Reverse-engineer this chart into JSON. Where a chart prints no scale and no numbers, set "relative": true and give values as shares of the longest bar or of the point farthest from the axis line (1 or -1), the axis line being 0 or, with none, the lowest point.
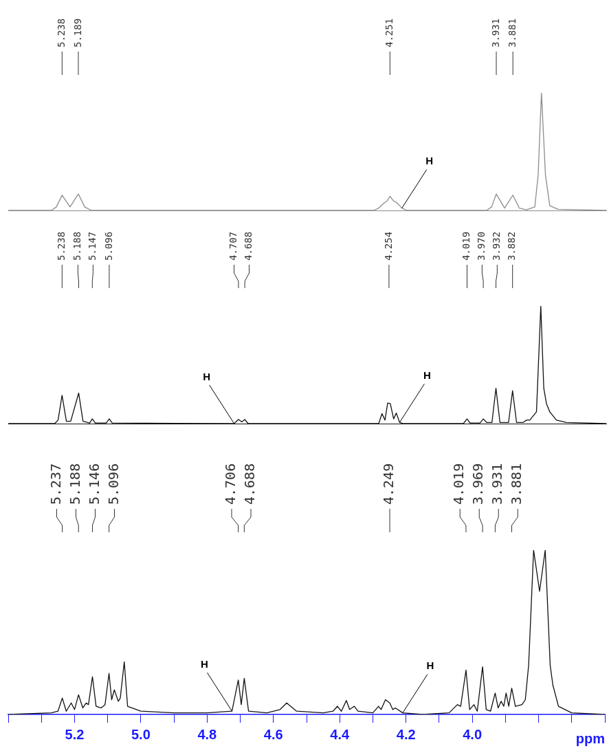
{
  "chart_data": [
    {
      "type": "line",
      "relative": true,
      "xlim": [
        5.4,
        3.6
      ],
      "tick_labels": false,
      "x": [
        5.4,
        5.27,
        5.255,
        5.238,
        5.214,
        5.189,
        5.17,
        5.15,
        4.3,
        4.285,
        4.27,
        4.26,
        4.251,
        4.24,
        4.232,
        4.215,
        4.2,
        3.96,
        3.945,
        3.931,
        3.906,
        3.881,
        3.862,
        3.84,
        3.815,
        3.805,
        3.795,
        3.783,
        3.77,
        3.745,
        3.6
      ],
      "series": [
        {
          "color": "#8c8c8c",
          "values": [
            0,
            0,
            0.03,
            0.13,
            0.03,
            0.14,
            0.03,
            0,
            0,
            0.02,
            0.06,
            0.08,
            0.12,
            0.08,
            0.07,
            0.02,
            0,
            0,
            0.03,
            0.14,
            0.02,
            0.13,
            0.02,
            0.005,
            0.03,
            0.3,
            1.0,
            0.3,
            0.04,
            0.01,
            0
          ]
        }
      ],
      "annotations": [
        {
          "text": "5.238",
          "x": 5.238
        },
        {
          "text": "5.189",
          "x": 5.189
        },
        {
          "text": "4.251",
          "x": 4.251
        },
        {
          "text": "3.931",
          "x": 3.931
        },
        {
          "text": "3.881",
          "x": 3.881
        },
        {
          "text": "H",
          "x": 4.215,
          "y": 0.02
        }
      ]
    },
    {
      "type": "line",
      "relative": true,
      "xlim": [
        5.4,
        3.6
      ],
      "tick_labels": false,
      "x": [
        5.4,
        5.26,
        5.25,
        5.238,
        5.225,
        5.212,
        5.188,
        5.175,
        5.155,
        5.147,
        5.138,
        5.105,
        5.096,
        5.087,
        4.72,
        4.707,
        4.697,
        4.688,
        4.678,
        4.285,
        4.275,
        4.266,
        4.258,
        4.25,
        4.24,
        4.232,
        4.222,
        4.21,
        4.03,
        4.019,
        4.01,
        3.98,
        3.97,
        3.96,
        3.944,
        3.932,
        3.92,
        3.894,
        3.882,
        3.87,
        3.85,
        3.84,
        3.83,
        3.81,
        3.797,
        3.788,
        3.78,
        3.77,
        3.75,
        3.72,
        3.6
      ],
      "series": [
        {
          "color": "#111111",
          "values": [
            0,
            0,
            0.03,
            0.24,
            0.02,
            0.02,
            0.26,
            0.02,
            0.005,
            0.04,
            0.005,
            0.005,
            0.04,
            0.005,
            0,
            0.035,
            0.015,
            0.035,
            0,
            0,
            0.085,
            0.03,
            0.175,
            0.17,
            0.04,
            0.09,
            0.01,
            0,
            0,
            0.04,
            0.005,
            0.005,
            0.04,
            0.01,
            0.01,
            0.3,
            0.01,
            0.01,
            0.28,
            0.01,
            0.01,
            0.03,
            0.03,
            0.1,
            1.0,
            0.3,
            0.17,
            0.1,
            0.03,
            0.01,
            0
          ]
        }
      ],
      "annotations": [
        {
          "text": "5.238",
          "x": 5.238
        },
        {
          "text": "5.188",
          "x": 5.188
        },
        {
          "text": "5.147",
          "x": 5.147
        },
        {
          "text": "5.096",
          "x": 5.096
        },
        {
          "text": "4.707",
          "x": 4.707
        },
        {
          "text": "4.688",
          "x": 4.688
        },
        {
          "text": "4.254",
          "x": 4.254
        },
        {
          "text": "4.019",
          "x": 4.019
        },
        {
          "text": "3.970",
          "x": 3.97
        },
        {
          "text": "3.932",
          "x": 3.932
        },
        {
          "text": "3.882",
          "x": 3.882
        },
        {
          "text": "H",
          "x": 4.72,
          "y": 0
        },
        {
          "text": "H",
          "x": 4.222,
          "y": 0.01
        }
      ]
    },
    {
      "type": "line",
      "relative": true,
      "xlim": [
        5.4,
        3.6
      ],
      "tick_labels": "x",
      "xlabel": "ppm",
      "xticks": [
        {
          "value": 5.4,
          "label": null
        },
        {
          "value": 5.3,
          "label": null
        },
        5.2,
        {
          "value": 5.1,
          "label": null
        },
        {
          "value": 5.0,
          "label": "5.0"
        },
        {
          "value": 4.9,
          "label": null
        },
        4.8,
        {
          "value": 4.7,
          "label": null
        },
        4.6,
        {
          "value": 4.5,
          "label": null
        },
        4.4,
        {
          "value": 4.3,
          "label": null
        },
        4.2,
        {
          "value": 4.1,
          "label": null
        },
        {
          "value": 4.0,
          "label": "4.0"
        },
        {
          "value": 3.9,
          "label": null
        },
        {
          "value": 3.8,
          "label": null
        },
        {
          "value": 3.7,
          "label": null
        },
        {
          "value": 3.6,
          "label": null
        }
      ],
      "x": [
        5.4,
        5.27,
        5.25,
        5.237,
        5.225,
        5.21,
        5.2,
        5.188,
        5.175,
        5.165,
        5.158,
        5.146,
        5.135,
        5.12,
        5.108,
        5.096,
        5.088,
        5.08,
        5.068,
        5.062,
        5.05,
        5.04,
        5.0,
        4.9,
        4.8,
        4.725,
        4.706,
        4.697,
        4.688,
        4.675,
        4.62,
        4.58,
        4.56,
        4.53,
        4.45,
        4.42,
        4.407,
        4.395,
        4.38,
        4.37,
        4.356,
        4.345,
        4.3,
        4.283,
        4.275,
        4.262,
        4.249,
        4.24,
        4.232,
        4.21,
        4.15,
        4.07,
        4.045,
        4.035,
        4.019,
        4.008,
        3.995,
        3.985,
        3.969,
        3.958,
        3.945,
        3.931,
        3.922,
        3.913,
        3.905,
        3.898,
        3.89,
        3.881,
        3.87,
        3.85,
        3.84,
        3.83,
        3.815,
        3.797,
        3.78,
        3.765,
        3.757,
        3.74,
        3.7,
        3.6
      ],
      "series": [
        {
          "color": "#111111",
          "values": [
            0,
            0.01,
            0.02,
            0.1,
            0.02,
            0.07,
            0.03,
            0.12,
            0.04,
            0.07,
            0.06,
            0.23,
            0.05,
            0.04,
            0.06,
            0.25,
            0.09,
            0.15,
            0.08,
            0.1,
            0.32,
            0.05,
            0.02,
            0.01,
            0.01,
            0.02,
            0.21,
            0.06,
            0.22,
            0.02,
            0.01,
            0.03,
            0.07,
            0.02,
            0.01,
            0.02,
            0.05,
            0.02,
            0.085,
            0.03,
            0.05,
            0.02,
            0.01,
            0.05,
            0.03,
            0.09,
            0.07,
            0.03,
            0.04,
            0.01,
            0,
            0.01,
            0.06,
            0.05,
            0.27,
            0.03,
            0.06,
            0.02,
            0.29,
            0.03,
            0.02,
            0.13,
            0.04,
            0.08,
            0.05,
            0.13,
            0.05,
            0.16,
            0.05,
            0.06,
            0.09,
            0.3,
            1.0,
            0.75,
            1.0,
            0.3,
            0.18,
            0.05,
            0.01,
            0
          ]
        }
      ],
      "annotations": [
        {
          "text": "5.237",
          "x": 5.237
        },
        {
          "text": "5.188",
          "x": 5.188
        },
        {
          "text": "5.146",
          "x": 5.146
        },
        {
          "text": "5.096",
          "x": 5.096
        },
        {
          "text": "4.706",
          "x": 4.706
        },
        {
          "text": "4.688",
          "x": 4.688
        },
        {
          "text": "4.249",
          "x": 4.249
        },
        {
          "text": "4.019",
          "x": 4.019
        },
        {
          "text": "3.969",
          "x": 3.969
        },
        {
          "text": "3.931",
          "x": 3.931
        },
        {
          "text": "3.881",
          "x": 3.881
        },
        {
          "text": "H",
          "x": 4.725,
          "y": 0.02
        },
        {
          "text": "H",
          "x": 4.21,
          "y": 0.01
        }
      ]
    }
  ]
}
